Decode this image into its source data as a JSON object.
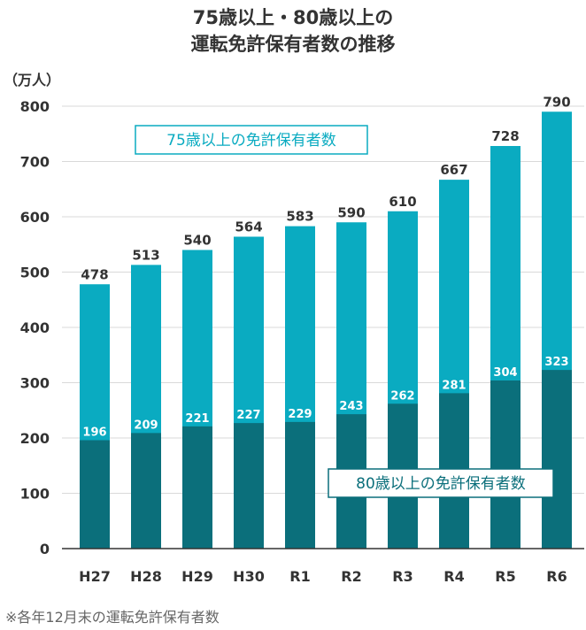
{
  "title_lines": [
    "75歳以上・80歳以上の",
    "運転免許保有者数の推移"
  ],
  "footnote": "※各年12月末の運転免許保有者数",
  "colors": {
    "series_75": "#0aabc1",
    "series_80": "#0b6f7b",
    "axis": "#333333",
    "grid": "#d9d9d9"
  },
  "chart_data": {
    "type": "bar",
    "overlay": true,
    "unit_label": "（万人）",
    "categories": [
      "H27",
      "H28",
      "H29",
      "H30",
      "R1",
      "R2",
      "R3",
      "R4",
      "R5",
      "R6"
    ],
    "series": [
      {
        "name": "75歳以上の免許保有者数",
        "values": [
          478,
          513,
          540,
          564,
          583,
          590,
          610,
          667,
          728,
          790
        ]
      },
      {
        "name": "80歳以上の免許保有者数",
        "values": [
          196,
          209,
          221,
          227,
          229,
          243,
          262,
          281,
          304,
          323
        ]
      }
    ],
    "ylim": [
      0,
      800
    ],
    "yticks": [
      0,
      100,
      200,
      300,
      400,
      500,
      600,
      700,
      800
    ],
    "grid": true,
    "legend_75_position": "upper-left inside plot",
    "legend_80_position": "lower-right inside plot"
  }
}
